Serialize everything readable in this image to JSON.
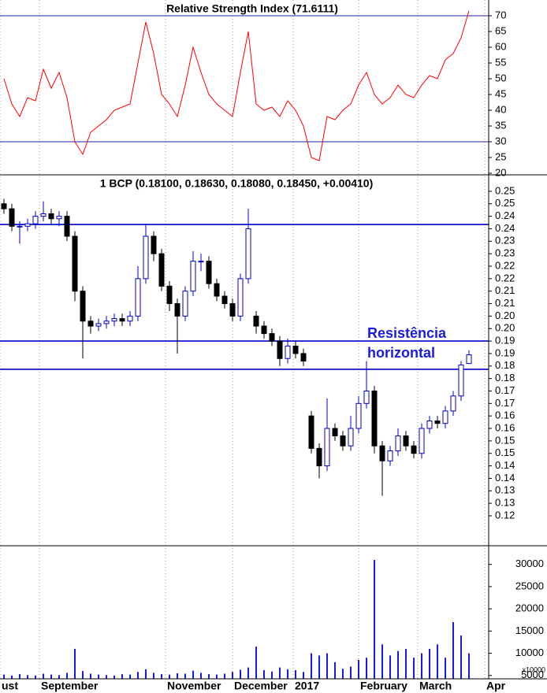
{
  "chart_data": [
    {
      "type": "line",
      "title": "Relative Strength Index (71.6111)",
      "ylim": [
        19.5,
        75
      ],
      "yticks": [
        70,
        65,
        60,
        55,
        50,
        45,
        40,
        35,
        30,
        25,
        20
      ],
      "hlines": [
        70,
        30
      ],
      "hline_color": "#2222aa",
      "series": [
        {
          "color": "#ff0000",
          "values": [
            50,
            42,
            38,
            44,
            43,
            53,
            47,
            52,
            44,
            30,
            26,
            33,
            35,
            37,
            40,
            41,
            42,
            55,
            68,
            58,
            45,
            42,
            38,
            48,
            60,
            52,
            45,
            42,
            40,
            38,
            52,
            65,
            42,
            40,
            41,
            38,
            43,
            40,
            35,
            25,
            24,
            38,
            37,
            40,
            42,
            48,
            52,
            45,
            42,
            44,
            48,
            45,
            44,
            48,
            51,
            50,
            56,
            58,
            63,
            71.6111
          ]
        }
      ]
    },
    {
      "type": "candlestick",
      "title": "1 BCP (0.18100, 0.18630, 0.18080, 0.18450, +0.00410)",
      "ylim": [
        0.108,
        0.2566
      ],
      "yticks": [
        {
          "value": 0.25,
          "label": "0.25"
        },
        {
          "value": 0.245,
          "label": "0.25"
        },
        {
          "value": 0.24,
          "label": "0.24"
        },
        {
          "value": 0.235,
          "label": "0.24"
        },
        {
          "value": 0.23,
          "label": "0.23"
        },
        {
          "value": 0.225,
          "label": "0.23"
        },
        {
          "value": 0.22,
          "label": "0.22"
        },
        {
          "value": 0.215,
          "label": "0.22"
        },
        {
          "value": 0.21,
          "label": "0.21"
        },
        {
          "value": 0.205,
          "label": "0.21"
        },
        {
          "value": 0.2,
          "label": "0.20"
        },
        {
          "value": 0.195,
          "label": "0.20"
        },
        {
          "value": 0.19,
          "label": "0.19"
        },
        {
          "value": 0.185,
          "label": "0.19"
        },
        {
          "value": 0.18,
          "label": "0.18"
        },
        {
          "value": 0.175,
          "label": "0.18"
        },
        {
          "value": 0.17,
          "label": "0.17"
        },
        {
          "value": 0.165,
          "label": "0.17"
        },
        {
          "value": 0.16,
          "label": "0.16"
        },
        {
          "value": 0.155,
          "label": "0.16"
        },
        {
          "value": 0.15,
          "label": "0.15"
        },
        {
          "value": 0.145,
          "label": "0.15"
        },
        {
          "value": 0.14,
          "label": "0.14"
        },
        {
          "value": 0.135,
          "label": "0.14"
        },
        {
          "value": 0.13,
          "label": "0.13"
        },
        {
          "value": 0.125,
          "label": "0.13"
        },
        {
          "value": 0.12,
          "label": "0.12"
        }
      ],
      "hlines": [
        0.2367,
        0.19,
        0.1787
      ],
      "hline_color": "#0000cc",
      "up_color": "#0000cc",
      "down_color": "#000000",
      "annotation": [
        "Resistência",
        "horizontal"
      ],
      "open": [
        0.245,
        0.243,
        0.236,
        0.236,
        0.237,
        0.24,
        0.241,
        0.239,
        0.24,
        0.232,
        0.21,
        0.198,
        0.196,
        0.197,
        0.198,
        0.199,
        0.198,
        0.2,
        0.215,
        0.232,
        0.225,
        0.212,
        0.205,
        0.2,
        0.21,
        0.222,
        0.222,
        0.213,
        0.208,
        0.205,
        0.2,
        0.215,
        0.2,
        0.196,
        0.193,
        0.19,
        0.183,
        0.188,
        0.185,
        0.16,
        0.147,
        0.14,
        0.155,
        0.152,
        0.148,
        0.155,
        0.165,
        0.17,
        0.148,
        0.142,
        0.146,
        0.152,
        0.148,
        0.145,
        0.155,
        0.158,
        0.157,
        0.162,
        0.168,
        0.181
      ],
      "high": [
        0.247,
        0.245,
        0.238,
        0.239,
        0.242,
        0.246,
        0.243,
        0.242,
        0.242,
        0.234,
        0.212,
        0.2,
        0.199,
        0.2,
        0.201,
        0.201,
        0.202,
        0.22,
        0.237,
        0.234,
        0.227,
        0.214,
        0.207,
        0.212,
        0.226,
        0.225,
        0.224,
        0.215,
        0.21,
        0.207,
        0.217,
        0.243,
        0.202,
        0.198,
        0.195,
        0.192,
        0.191,
        0.19,
        0.187,
        0.162,
        0.149,
        0.167,
        0.157,
        0.154,
        0.16,
        0.168,
        0.182,
        0.172,
        0.15,
        0.148,
        0.155,
        0.154,
        0.15,
        0.157,
        0.16,
        0.16,
        0.164,
        0.17,
        0.182,
        0.1863
      ],
      "low": [
        0.241,
        0.234,
        0.229,
        0.234,
        0.235,
        0.238,
        0.237,
        0.236,
        0.23,
        0.206,
        0.183,
        0.193,
        0.194,
        0.195,
        0.196,
        0.196,
        0.196,
        0.198,
        0.213,
        0.222,
        0.21,
        0.202,
        0.185,
        0.198,
        0.208,
        0.218,
        0.211,
        0.206,
        0.203,
        0.198,
        0.198,
        0.213,
        0.193,
        0.191,
        0.188,
        0.18,
        0.181,
        0.183,
        0.18,
        0.145,
        0.135,
        0.138,
        0.15,
        0.146,
        0.146,
        0.153,
        0.163,
        0.145,
        0.128,
        0.14,
        0.144,
        0.146,
        0.143,
        0.143,
        0.153,
        0.155,
        0.155,
        0.16,
        0.166,
        0.1808
      ],
      "close": [
        0.243,
        0.236,
        0.236,
        0.237,
        0.24,
        0.241,
        0.239,
        0.24,
        0.232,
        0.21,
        0.198,
        0.196,
        0.197,
        0.198,
        0.199,
        0.198,
        0.2,
        0.215,
        0.232,
        0.225,
        0.212,
        0.205,
        0.2,
        0.21,
        0.222,
        0.222,
        0.213,
        0.208,
        0.205,
        0.2,
        0.215,
        0.235,
        0.196,
        0.193,
        0.19,
        0.183,
        0.188,
        0.185,
        0.182,
        0.147,
        0.14,
        0.155,
        0.152,
        0.148,
        0.155,
        0.165,
        0.17,
        0.148,
        0.142,
        0.146,
        0.152,
        0.148,
        0.145,
        0.155,
        0.158,
        0.157,
        0.162,
        0.168,
        0.1804,
        0.1845
      ]
    },
    {
      "type": "bar",
      "ylim": [
        4250,
        34200
      ],
      "yticks": [
        30000,
        25000,
        20000,
        15000,
        10000,
        5000
      ],
      "unit_label": "x10000",
      "color": "#1a1aee",
      "values": [
        5200,
        5000,
        5300,
        5100,
        5000,
        5400,
        5200,
        5100,
        5600,
        11000,
        6000,
        5400,
        5200,
        5100,
        5000,
        5300,
        5200,
        5800,
        6400,
        5600,
        5300,
        5200,
        5500,
        5400,
        6100,
        5600,
        5300,
        5200,
        5400,
        5800,
        6300,
        6800,
        11500,
        6200,
        5900,
        6800,
        6400,
        6200,
        5800,
        10000,
        9500,
        10000,
        8000,
        6500,
        7000,
        8500,
        9000,
        31000,
        12000,
        9500,
        10500,
        11000,
        9000,
        10000,
        11000,
        12000,
        9000,
        17000,
        14000,
        10000
      ],
      "xlim": [
        -0.5,
        61.5
      ],
      "xticks": [
        {
          "value": -0.5,
          "label": "ust"
        },
        {
          "value": 4.5,
          "label": "September"
        },
        {
          "value": 20.5,
          "label": "November"
        },
        {
          "value": 29,
          "label": "December"
        },
        {
          "value": 36.7,
          "label": "2017"
        },
        {
          "value": 45,
          "label": "February"
        },
        {
          "value": 52.5,
          "label": "March"
        },
        {
          "value": 61,
          "label": "Apr"
        }
      ]
    }
  ]
}
